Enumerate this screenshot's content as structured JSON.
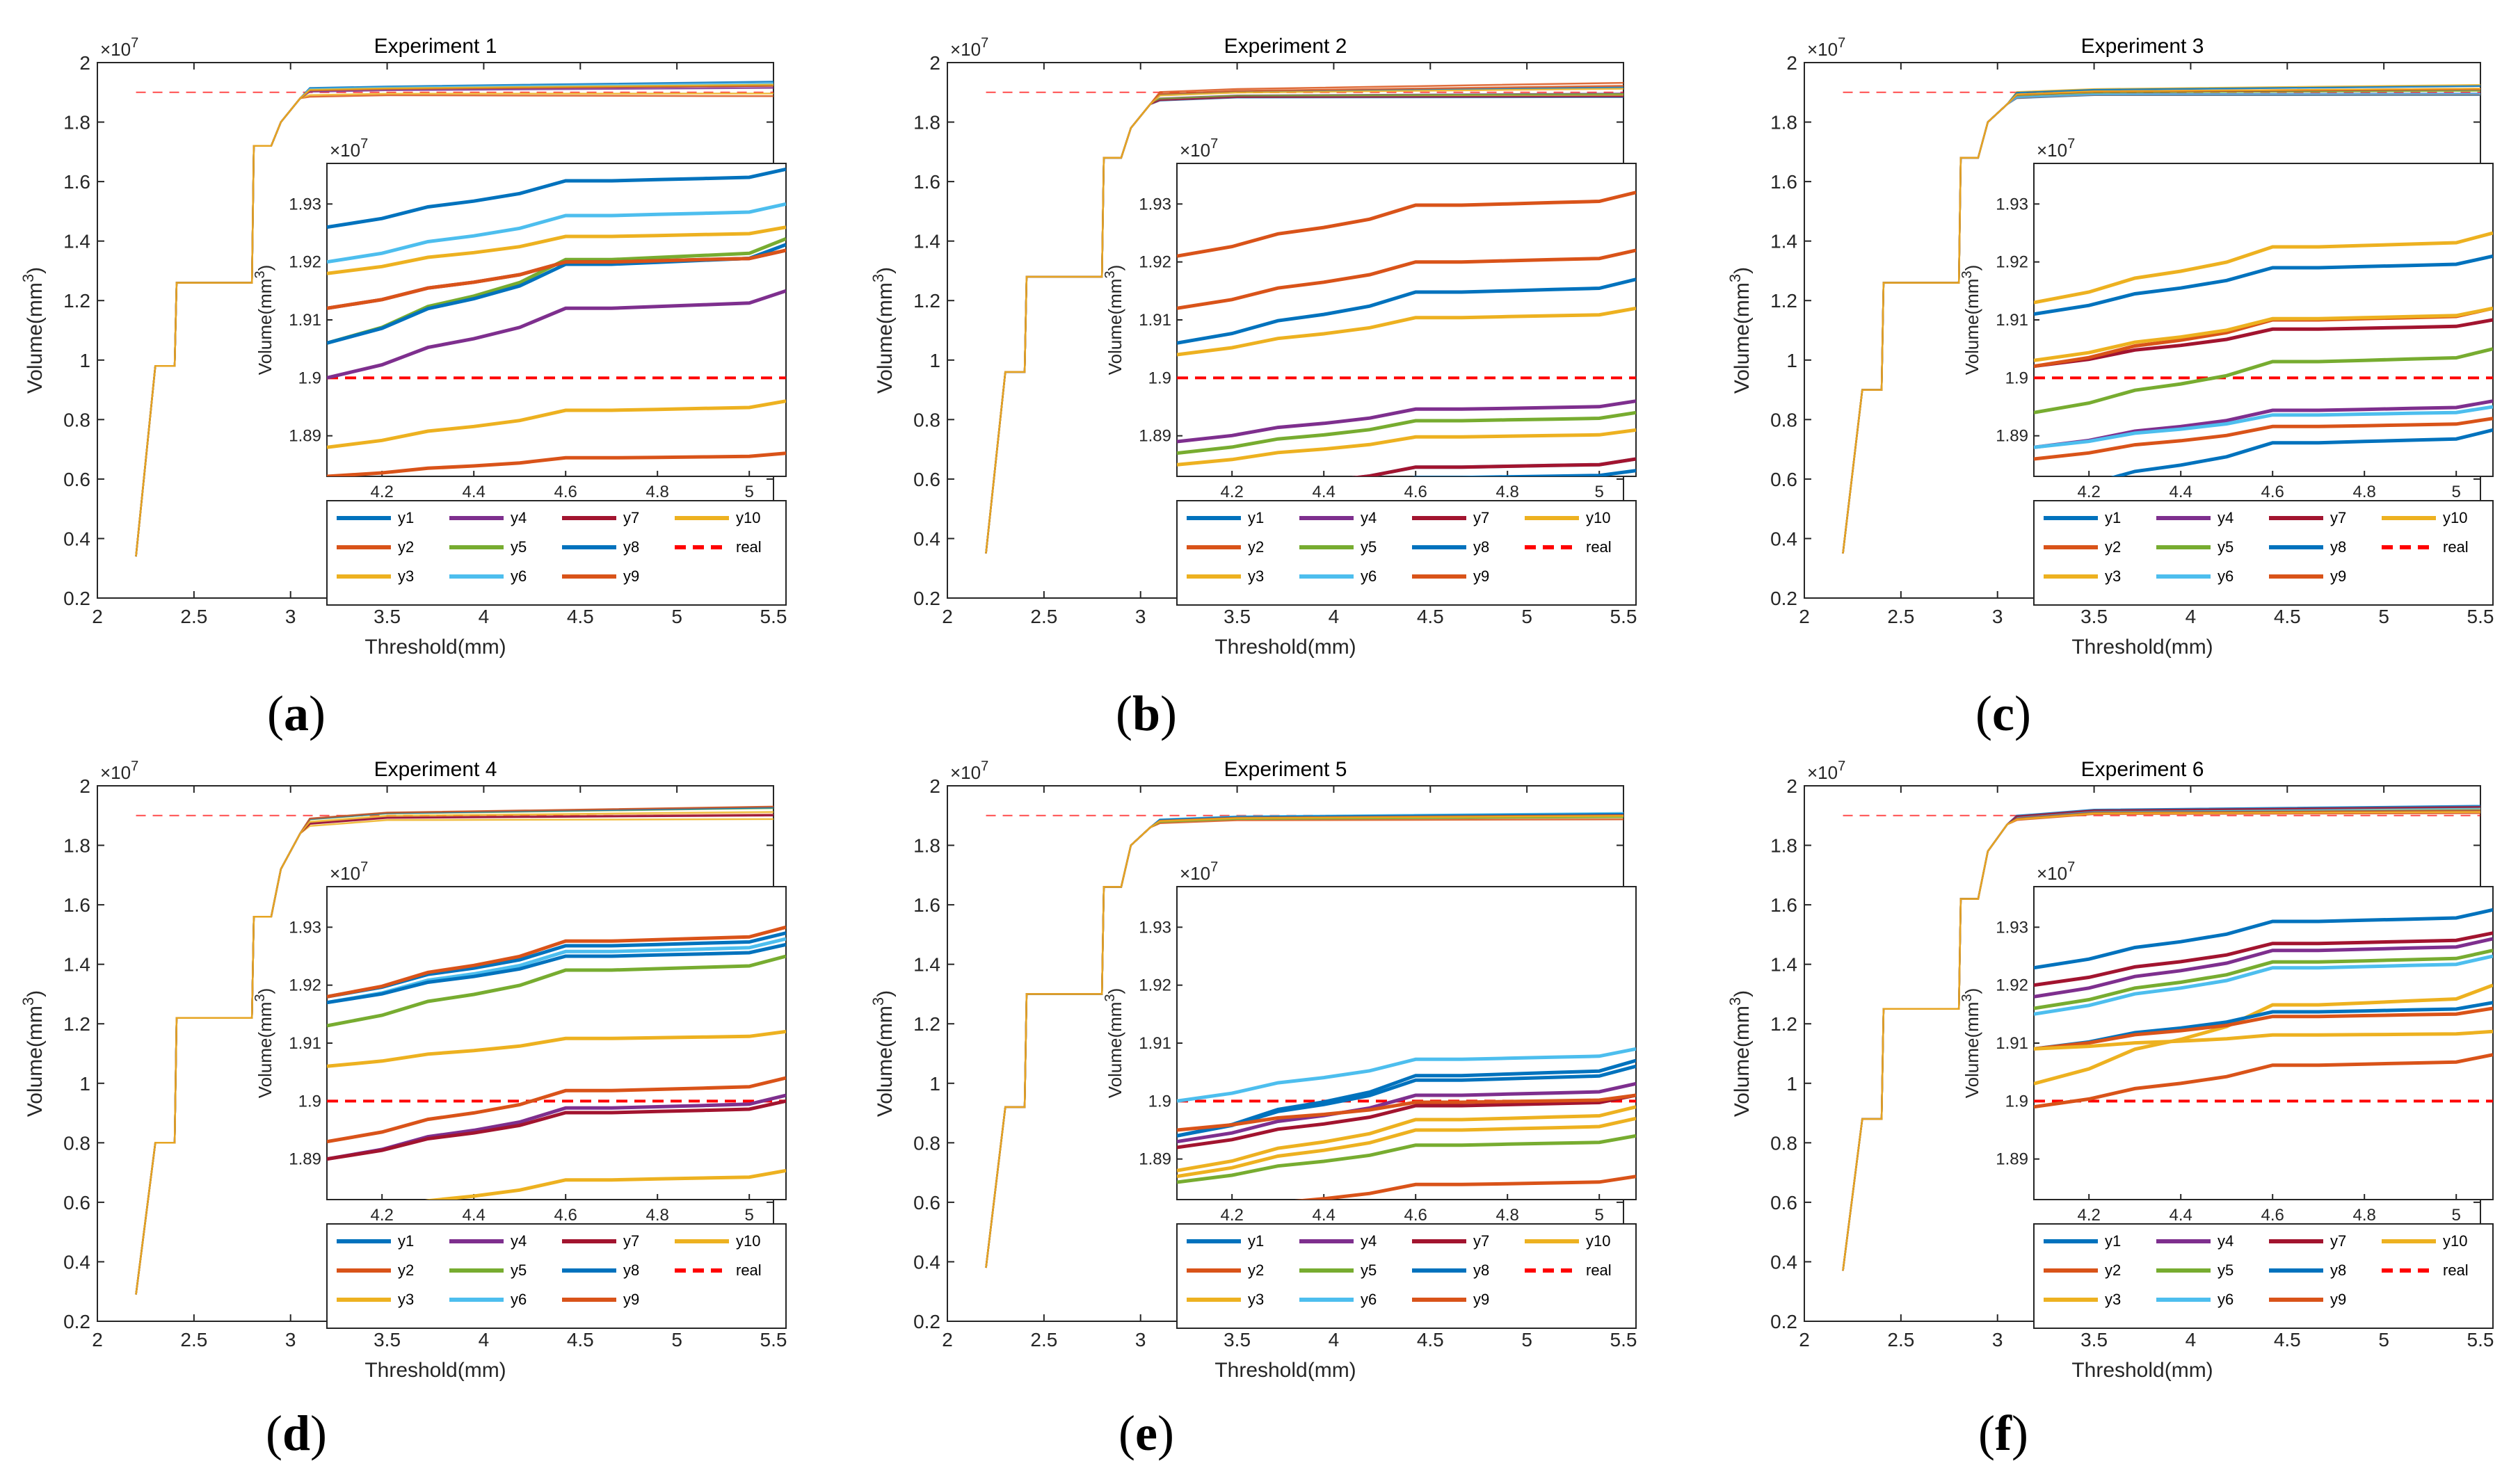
{
  "colors": {
    "y1": "#0072BD",
    "y2": "#D95319",
    "y3": "#EDB120",
    "y4": "#7E2F8E",
    "y5": "#77AC30",
    "y6": "#4DBEEE",
    "y7": "#A2142F",
    "y8": "#0072BD",
    "y9": "#D95319",
    "y10": "#EDB120",
    "real": "#FF0000"
  },
  "shared": {
    "xlabel": "Threshold(mm)",
    "ylabel_main": "Volume(mm",
    "ylabel_sup": "3",
    "ylabel_close": ")",
    "exp_base": "×10",
    "exp_power": "7",
    "x_ticks": [
      "2",
      "2.5",
      "3",
      "3.5",
      "4",
      "4.5",
      "5",
      "5.5"
    ],
    "y_ticks": [
      "0.2",
      "0.4",
      "0.6",
      "0.8",
      "1",
      "1.2",
      "1.4",
      "1.6",
      "1.8",
      "2"
    ],
    "inset_x_ticks": [
      "4.2",
      "4.4",
      "4.6",
      "4.8",
      "5"
    ],
    "inset_y_ticks": [
      "1.89",
      "1.9",
      "1.91",
      "1.92",
      "1.93"
    ],
    "legend_order": [
      "y1",
      "y4",
      "y7",
      "y10",
      "y2",
      "y5",
      "y8",
      "real",
      "y3",
      "y6",
      "y9"
    ]
  },
  "chart_data": [
    {
      "type": "line",
      "label": "(a)",
      "title": "Experiment 1",
      "xlim": [
        2,
        5.5
      ],
      "ylim": [
        0.2,
        2.0
      ],
      "inset_xlim": [
        4.08,
        5.08
      ],
      "inset_ylim": [
        1.883,
        1.937
      ],
      "step_profile": {
        "x": [
          2.2,
          2.3,
          2.31,
          2.4,
          2.41,
          2.5,
          2.51,
          2.8,
          2.81,
          2.9,
          2.95,
          3.05,
          3.1,
          3.5
        ],
        "v": [
          0.34,
          0.98,
          0.98,
          0.98,
          1.26,
          1.26,
          1.26,
          1.26,
          1.72,
          1.72,
          1.8,
          1.88,
          1.89,
          1.895
        ]
      },
      "series_final": {
        "y1": 1.936,
        "y2": 1.887,
        "y3": 1.896,
        "y4": 1.915,
        "y5": 1.924,
        "y6": 1.93,
        "y7": 1.922,
        "y8": 1.923,
        "y9": 1.922,
        "y10": 1.926,
        "real": 1.9
      },
      "series_start": {
        "y1": 1.926,
        "y2": 1.883,
        "y3": 1.888,
        "y4": 1.9,
        "y5": 1.906,
        "y6": 1.92,
        "y7": 1.912,
        "y8": 1.906,
        "y9": 1.912,
        "y10": 1.918,
        "real": 1.9
      }
    },
    {
      "type": "line",
      "label": "(b)",
      "title": "Experiment 2",
      "xlim": [
        2,
        5.5
      ],
      "ylim": [
        0.2,
        2.0
      ],
      "inset_xlim": [
        4.08,
        5.08
      ],
      "inset_ylim": [
        1.883,
        1.937
      ],
      "step_profile": {
        "x": [
          2.2,
          2.3,
          2.31,
          2.4,
          2.41,
          2.5,
          2.51,
          2.8,
          2.81,
          2.9,
          2.95,
          3.05,
          3.1,
          3.5
        ],
        "v": [
          0.35,
          0.96,
          0.96,
          0.96,
          1.28,
          1.28,
          1.28,
          1.28,
          1.68,
          1.68,
          1.78,
          1.86,
          1.87,
          1.88
        ]
      },
      "series_final": {
        "y1": 1.884,
        "y2": 1.932,
        "y3": 1.891,
        "y4": 1.896,
        "y5": 1.894,
        "y6": 1.886,
        "y7": 1.886,
        "y8": 1.917,
        "y9": 1.922,
        "y10": 1.912,
        "real": 1.9
      },
      "series_start": {
        "y1": 1.878,
        "y2": 1.921,
        "y3": 1.885,
        "y4": 1.889,
        "y5": 1.887,
        "y6": 1.879,
        "y7": 1.879,
        "y8": 1.906,
        "y9": 1.912,
        "y10": 1.904,
        "real": 1.9
      }
    },
    {
      "type": "line",
      "label": "(c)",
      "title": "Experiment 3",
      "xlim": [
        2,
        5.5
      ],
      "ylim": [
        0.2,
        2.0
      ],
      "inset_xlim": [
        4.08,
        5.08
      ],
      "inset_ylim": [
        1.883,
        1.937
      ],
      "step_profile": {
        "x": [
          2.2,
          2.3,
          2.31,
          2.4,
          2.41,
          2.5,
          2.51,
          2.8,
          2.81,
          2.9,
          2.95,
          3.05,
          3.1,
          3.5
        ],
        "v": [
          0.35,
          0.9,
          0.9,
          0.9,
          1.26,
          1.26,
          1.26,
          1.26,
          1.68,
          1.68,
          1.8,
          1.86,
          1.88,
          1.89
        ]
      },
      "series_final": {
        "y1": 1.891,
        "y2": 1.893,
        "y3": 1.925,
        "y4": 1.896,
        "y5": 1.905,
        "y6": 1.895,
        "y7": 1.91,
        "y8": 1.921,
        "y9": 1.912,
        "y10": 1.912,
        "real": 1.9
      },
      "series_start": {
        "y1": 1.88,
        "y2": 1.886,
        "y3": 1.913,
        "y4": 1.888,
        "y5": 1.894,
        "y6": 1.888,
        "y7": 1.902,
        "y8": 1.911,
        "y9": 1.902,
        "y10": 1.903,
        "real": 1.9
      }
    },
    {
      "type": "line",
      "label": "(d)",
      "title": "Experiment 4",
      "xlim": [
        2,
        5.5
      ],
      "ylim": [
        0.2,
        2.0
      ],
      "inset_xlim": [
        4.08,
        5.08
      ],
      "inset_ylim": [
        1.883,
        1.937
      ],
      "step_profile": {
        "x": [
          2.2,
          2.3,
          2.31,
          2.4,
          2.41,
          2.5,
          2.51,
          2.8,
          2.81,
          2.9,
          2.95,
          3.05,
          3.1,
          3.5
        ],
        "v": [
          0.29,
          0.8,
          0.8,
          0.8,
          1.22,
          1.22,
          1.22,
          1.22,
          1.56,
          1.56,
          1.72,
          1.84,
          1.86,
          1.88
        ]
      },
      "series_final": {
        "y1": 1.929,
        "y2": 1.904,
        "y3": 1.888,
        "y4": 1.901,
        "y5": 1.925,
        "y6": 1.928,
        "y7": 1.9,
        "y8": 1.927,
        "y9": 1.93,
        "y10": 1.912,
        "real": 1.9
      },
      "series_start": {
        "y1": 1.918,
        "y2": 1.893,
        "y3": 1.88,
        "y4": 1.89,
        "y5": 1.913,
        "y6": 1.917,
        "y7": 1.89,
        "y8": 1.917,
        "y9": 1.918,
        "y10": 1.906,
        "real": 1.9
      }
    },
    {
      "type": "line",
      "label": "(e)",
      "title": "Experiment 5",
      "xlim": [
        2,
        5.5
      ],
      "ylim": [
        0.2,
        2.0
      ],
      "inset_xlim": [
        4.08,
        5.08
      ],
      "inset_ylim": [
        1.883,
        1.937
      ],
      "step_profile": {
        "x": [
          2.2,
          2.3,
          2.31,
          2.4,
          2.41,
          2.5,
          2.51,
          2.8,
          2.81,
          2.9,
          2.95,
          3.05,
          3.1,
          3.5
        ],
        "v": [
          0.38,
          0.92,
          0.92,
          0.92,
          1.3,
          1.3,
          1.3,
          1.3,
          1.66,
          1.66,
          1.8,
          1.86,
          1.87,
          1.88
        ]
      },
      "series_final": {
        "y1": 1.907,
        "y2": 1.887,
        "y3": 1.897,
        "y4": 1.903,
        "y5": 1.894,
        "y6": 1.909,
        "y7": 1.901,
        "y8": 1.906,
        "y9": 1.901,
        "y10": 1.899,
        "real": 1.9
      },
      "series_start": {
        "y1": 1.894,
        "y2": 1.88,
        "y3": 1.887,
        "y4": 1.893,
        "y5": 1.886,
        "y6": 1.9,
        "y7": 1.892,
        "y8": 1.894,
        "y9": 1.895,
        "y10": 1.888,
        "real": 1.9
      }
    },
    {
      "type": "line",
      "label": "(f)",
      "title": "Experiment 6",
      "xlim": [
        2,
        5.5
      ],
      "ylim": [
        0.2,
        2.0
      ],
      "inset_xlim": [
        4.08,
        5.08
      ],
      "inset_ylim": [
        1.883,
        1.937
      ],
      "step_profile": {
        "x": [
          2.2,
          2.3,
          2.31,
          2.4,
          2.41,
          2.5,
          2.51,
          2.8,
          2.81,
          2.9,
          2.95,
          3.05,
          3.1,
          3.5
        ],
        "v": [
          0.37,
          0.88,
          0.88,
          0.88,
          1.25,
          1.25,
          1.25,
          1.25,
          1.62,
          1.62,
          1.78,
          1.87,
          1.88,
          1.9
        ]
      },
      "series_final": {
        "y1": 1.933,
        "y2": 1.908,
        "y3": 1.92,
        "y4": 1.928,
        "y5": 1.926,
        "y6": 1.925,
        "y7": 1.929,
        "y8": 1.917,
        "y9": 1.916,
        "y10": 1.912,
        "real": 1.9
      },
      "series_start": {
        "y1": 1.923,
        "y2": 1.899,
        "y3": 1.903,
        "y4": 1.918,
        "y5": 1.916,
        "y6": 1.915,
        "y7": 1.92,
        "y8": 1.909,
        "y9": 1.909,
        "y10": 1.909,
        "real": 1.9
      }
    }
  ]
}
